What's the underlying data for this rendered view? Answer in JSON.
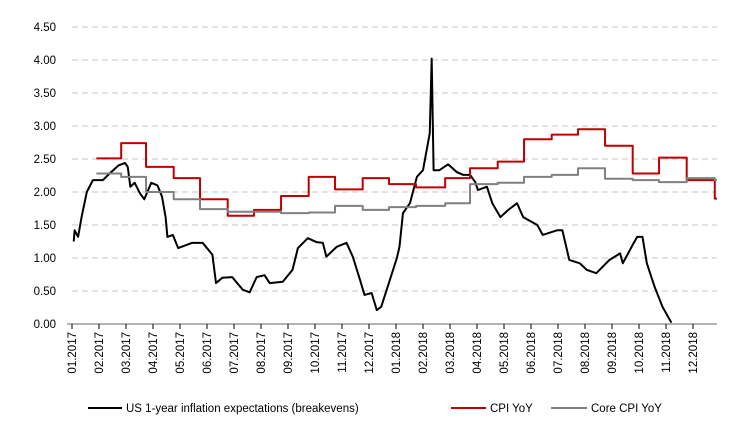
{
  "chart_data": {
    "type": "line",
    "title": "",
    "xlabel": "",
    "ylabel": "",
    "ylim": [
      0,
      4.5
    ],
    "y_ticks": [
      "0.00",
      "0.50",
      "1.00",
      "1.50",
      "2.00",
      "2.50",
      "3.00",
      "3.50",
      "4.00",
      "4.50"
    ],
    "x_tick_labels": [
      "01.2017",
      "02.2017",
      "03.2017",
      "04.2017",
      "05.2017",
      "06.2017",
      "07.2017",
      "08.2017",
      "09.2017",
      "10.2017",
      "11.2017",
      "12.2017",
      "01.2018",
      "02.2018",
      "03.2018",
      "04.2018",
      "05.2018",
      "06.2018",
      "07.2018",
      "08.2018",
      "09.2018",
      "10.2018",
      "11.2018",
      "12.2018"
    ],
    "xlim": [
      "2017-01-01",
      "2018-12-31"
    ],
    "grid": "horizontal dashed",
    "legend_position": "bottom",
    "series": [
      {
        "name": "US 1-year inflation expectations (breakevens)",
        "color": "#000000",
        "style": "line",
        "points": [
          [
            "2017-01-03",
            1.25
          ],
          [
            "2017-01-04",
            1.42
          ],
          [
            "2017-01-08",
            1.32
          ],
          [
            "2017-01-12",
            1.62
          ],
          [
            "2017-01-18",
            2.0
          ],
          [
            "2017-01-25",
            2.18
          ],
          [
            "2017-02-05",
            2.18
          ],
          [
            "2017-02-12",
            2.28
          ],
          [
            "2017-02-21",
            2.4
          ],
          [
            "2017-02-28",
            2.44
          ],
          [
            "2017-03-03",
            2.38
          ],
          [
            "2017-03-06",
            2.08
          ],
          [
            "2017-03-11",
            2.14
          ],
          [
            "2017-03-17",
            1.98
          ],
          [
            "2017-03-22",
            1.89
          ],
          [
            "2017-03-30",
            2.14
          ],
          [
            "2017-04-06",
            2.1
          ],
          [
            "2017-04-11",
            1.93
          ],
          [
            "2017-04-15",
            1.62
          ],
          [
            "2017-04-17",
            1.32
          ],
          [
            "2017-04-23",
            1.35
          ],
          [
            "2017-04-29",
            1.15
          ],
          [
            "2017-05-15",
            1.23
          ],
          [
            "2017-05-27",
            1.23
          ],
          [
            "2017-06-07",
            1.05
          ],
          [
            "2017-06-11",
            0.62
          ],
          [
            "2017-06-18",
            0.7
          ],
          [
            "2017-06-29",
            0.71
          ],
          [
            "2017-07-11",
            0.52
          ],
          [
            "2017-07-19",
            0.48
          ],
          [
            "2017-07-27",
            0.71
          ],
          [
            "2017-08-05",
            0.74
          ],
          [
            "2017-08-11",
            0.62
          ],
          [
            "2017-08-26",
            0.64
          ],
          [
            "2017-09-06",
            0.82
          ],
          [
            "2017-09-12",
            1.15
          ],
          [
            "2017-09-23",
            1.3
          ],
          [
            "2017-10-03",
            1.24
          ],
          [
            "2017-10-10",
            1.23
          ],
          [
            "2017-10-14",
            1.02
          ],
          [
            "2017-10-26",
            1.17
          ],
          [
            "2017-11-06",
            1.23
          ],
          [
            "2017-11-13",
            1.02
          ],
          [
            "2017-11-21",
            0.67
          ],
          [
            "2017-11-26",
            0.44
          ],
          [
            "2017-12-04",
            0.47
          ],
          [
            "2017-12-10",
            0.21
          ],
          [
            "2017-12-15",
            0.26
          ],
          [
            "2017-12-25",
            0.67
          ],
          [
            "2018-01-02",
            1.0
          ],
          [
            "2018-01-05",
            1.17
          ],
          [
            "2018-01-09",
            1.68
          ],
          [
            "2018-01-17",
            1.83
          ],
          [
            "2018-01-25",
            2.23
          ],
          [
            "2018-02-01",
            2.33
          ],
          [
            "2018-02-08",
            2.89
          ],
          [
            "2018-02-10",
            4.02
          ],
          [
            "2018-02-12",
            2.33
          ],
          [
            "2018-02-18",
            2.33
          ],
          [
            "2018-02-27",
            2.42
          ],
          [
            "2018-03-09",
            2.3
          ],
          [
            "2018-03-16",
            2.26
          ],
          [
            "2018-03-24",
            2.26
          ],
          [
            "2018-03-30",
            2.15
          ],
          [
            "2018-04-02",
            2.03
          ],
          [
            "2018-04-12",
            2.08
          ],
          [
            "2018-04-18",
            1.83
          ],
          [
            "2018-04-27",
            1.62
          ],
          [
            "2018-05-06",
            1.73
          ],
          [
            "2018-05-16",
            1.83
          ],
          [
            "2018-05-23",
            1.62
          ],
          [
            "2018-06-08",
            1.5
          ],
          [
            "2018-06-14",
            1.35
          ],
          [
            "2018-06-30",
            1.42
          ],
          [
            "2018-07-06",
            1.42
          ],
          [
            "2018-07-14",
            0.97
          ],
          [
            "2018-07-26",
            0.92
          ],
          [
            "2018-08-03",
            0.82
          ],
          [
            "2018-08-14",
            0.77
          ],
          [
            "2018-08-29",
            0.97
          ],
          [
            "2018-09-10",
            1.07
          ],
          [
            "2018-09-13",
            0.92
          ],
          [
            "2018-09-24",
            1.2
          ],
          [
            "2018-09-29",
            1.32
          ],
          [
            "2018-10-05",
            1.32
          ],
          [
            "2018-10-10",
            0.92
          ],
          [
            "2018-10-19",
            0.56
          ],
          [
            "2018-10-28",
            0.26
          ],
          [
            "2018-11-07",
            0.02
          ]
        ]
      },
      {
        "name": "CPI YoY",
        "color": "#c00000",
        "style": "step",
        "points": [
          [
            "2017-01-29",
            2.51
          ],
          [
            "2017-02-24",
            2.74
          ],
          [
            "2017-03-24",
            2.38
          ],
          [
            "2017-04-24",
            2.21
          ],
          [
            "2017-05-24",
            1.89
          ],
          [
            "2017-06-24",
            1.64
          ],
          [
            "2017-07-24",
            1.73
          ],
          [
            "2017-08-24",
            1.94
          ],
          [
            "2017-09-24",
            2.23
          ],
          [
            "2017-10-24",
            2.04
          ],
          [
            "2017-11-24",
            2.21
          ],
          [
            "2017-12-24",
            2.12
          ],
          [
            "2018-01-24",
            2.07
          ],
          [
            "2018-02-24",
            2.21
          ],
          [
            "2018-03-24",
            2.36
          ],
          [
            "2018-04-24",
            2.46
          ],
          [
            "2018-05-24",
            2.8
          ],
          [
            "2018-06-24",
            2.87
          ],
          [
            "2018-07-24",
            2.95
          ],
          [
            "2018-08-24",
            2.7
          ],
          [
            "2018-09-24",
            2.28
          ],
          [
            "2018-10-24",
            2.52
          ],
          [
            "2018-11-24",
            2.18
          ],
          [
            "2018-12-26",
            1.9
          ]
        ]
      },
      {
        "name": "Core CPI YoY",
        "color": "#808080",
        "style": "step",
        "points": [
          [
            "2017-01-29",
            2.28
          ],
          [
            "2017-02-24",
            2.23
          ],
          [
            "2017-03-24",
            2.0
          ],
          [
            "2017-04-24",
            1.89
          ],
          [
            "2017-05-24",
            1.74
          ],
          [
            "2017-06-24",
            1.7
          ],
          [
            "2017-07-24",
            1.7
          ],
          [
            "2017-08-24",
            1.68
          ],
          [
            "2017-09-24",
            1.69
          ],
          [
            "2017-10-24",
            1.79
          ],
          [
            "2017-11-24",
            1.73
          ],
          [
            "2017-12-24",
            1.77
          ],
          [
            "2018-01-24",
            1.79
          ],
          [
            "2018-02-24",
            1.83
          ],
          [
            "2018-03-24",
            2.12
          ],
          [
            "2018-04-24",
            2.14
          ],
          [
            "2018-05-24",
            2.23
          ],
          [
            "2018-06-24",
            2.26
          ],
          [
            "2018-07-24",
            2.36
          ],
          [
            "2018-08-24",
            2.2
          ],
          [
            "2018-09-24",
            2.18
          ],
          [
            "2018-10-24",
            2.15
          ],
          [
            "2018-11-24",
            2.21
          ],
          [
            "2018-12-26",
            2.18
          ]
        ]
      }
    ]
  }
}
